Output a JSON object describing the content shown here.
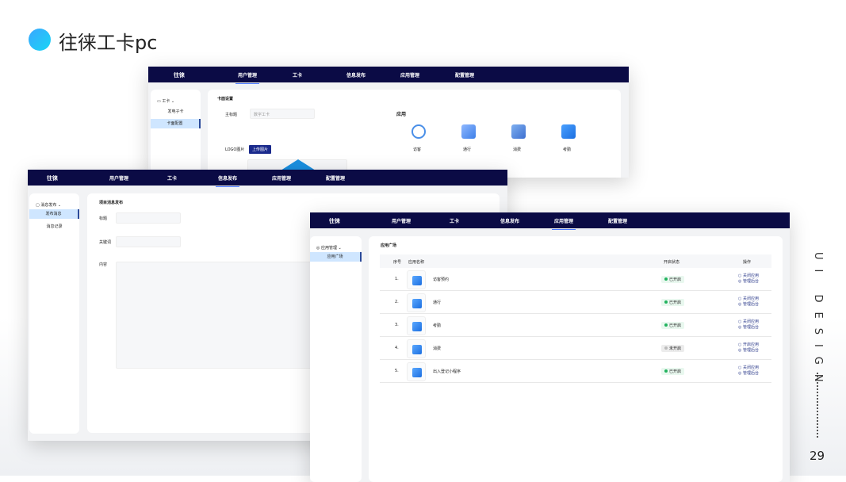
{
  "slide": {
    "title": "往徕工卡pc",
    "side_text": "UI DESIGN",
    "page_number": "29",
    "accent": "#18d6f5"
  },
  "nav": {
    "logo": "往徕",
    "items": [
      "用户管理",
      "工卡",
      "信息发布",
      "应用管理",
      "配置管理"
    ],
    "bg": "#0b0b45"
  },
  "win_card": {
    "active_tab": "用户管理",
    "sidebar": {
      "group": "工卡",
      "items": [
        "发电子卡",
        "卡面配置"
      ],
      "selected": "卡面配置"
    },
    "section": "卡面设置",
    "title_label": "主标题",
    "title_placeholder": "数字工卡",
    "logo_label": "LOGO图片",
    "upload_button": "上传图片",
    "apps_label": "应用",
    "apps": [
      {
        "name": "访客",
        "icon": "visitor-icon"
      },
      {
        "name": "通行",
        "icon": "pass-icon"
      },
      {
        "name": "消费",
        "icon": "payment-icon"
      },
      {
        "name": "考勤",
        "icon": "calendar-icon"
      }
    ]
  },
  "win_msg": {
    "active_tab": "信息发布",
    "sidebar": {
      "group": "消息发布",
      "items": [
        "发布消息",
        "消息记录"
      ],
      "selected": "发布消息"
    },
    "section": "项目消息发布",
    "fields": {
      "title": "标题",
      "keyword": "关键词",
      "content": "内容"
    }
  },
  "win_apps": {
    "active_tab": "应用管理",
    "sidebar": {
      "group": "应用管理",
      "items": [
        "应用广场"
      ],
      "selected": "应用广场"
    },
    "section": "应用广场",
    "columns": [
      "序号",
      "应用名称",
      "开启状态",
      "操作"
    ],
    "rows": [
      {
        "no": "1.",
        "name": "访客预约",
        "status": "已开启",
        "on": true,
        "op1": "关闭应用",
        "op2": "管理后台"
      },
      {
        "no": "2.",
        "name": "通行",
        "status": "已开启",
        "on": true,
        "op1": "关闭应用",
        "op2": "管理后台"
      },
      {
        "no": "3.",
        "name": "考勤",
        "status": "已开启",
        "on": true,
        "op1": "关闭应用",
        "op2": "管理后台"
      },
      {
        "no": "4.",
        "name": "消费",
        "status": "未开启",
        "on": false,
        "op1": "开启应用",
        "op2": "管理后台"
      },
      {
        "no": "5.",
        "name": "出入登记小程序",
        "status": "已开启",
        "on": true,
        "op1": "关闭应用",
        "op2": "管理后台"
      }
    ]
  }
}
